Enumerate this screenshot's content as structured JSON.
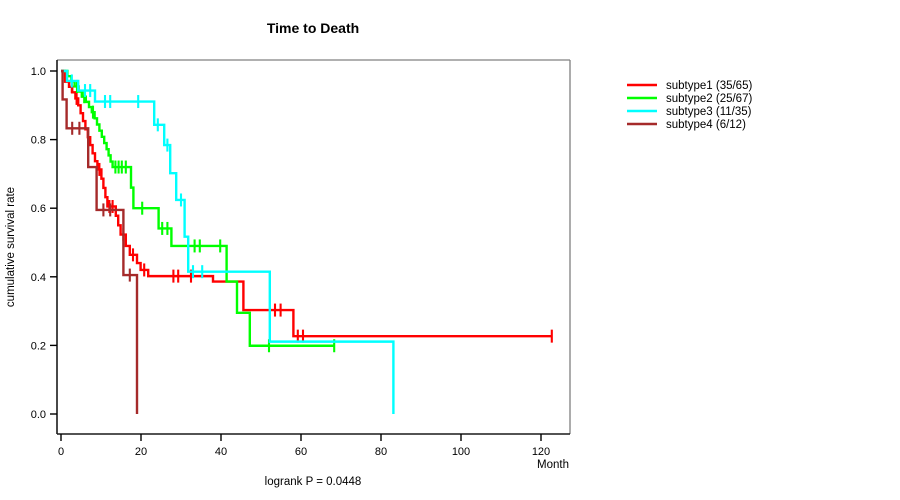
{
  "title": "Time to Death",
  "footnote": "logrank P = 0.0448",
  "axes": {
    "x": {
      "label": "Month",
      "ticks": [
        0,
        20,
        40,
        60,
        80,
        100,
        120
      ]
    },
    "y": {
      "label": "cumulative survival rate",
      "ticks": [
        "0.0",
        "0.2",
        "0.4",
        "0.6",
        "0.8",
        "1.0"
      ]
    }
  },
  "legend": [
    {
      "label": "subtype1 (35/65)",
      "color": "#FF0000"
    },
    {
      "label": "subtype2 (25/67)",
      "color": "#00FF00"
    },
    {
      "label": "subtype3 (11/35)",
      "color": "#00FFFF"
    },
    {
      "label": "subtype4 (6/12)",
      "color": "#A52A2A"
    }
  ],
  "chart_data": {
    "type": "line",
    "subtype": "kaplan-meier-step",
    "title": "Time to Death",
    "xlabel": "Month",
    "ylabel": "cumulative survival rate",
    "xlim": [
      0,
      127
    ],
    "ylim": [
      0,
      1.0
    ],
    "x_ticks": [
      0,
      20,
      40,
      60,
      80,
      100,
      120
    ],
    "y_ticks": [
      0.0,
      0.2,
      0.4,
      0.6,
      0.8,
      1.0
    ],
    "grid": false,
    "legend_position": "right-outside",
    "annotation": "logrank P = 0.0448",
    "series": [
      {
        "name": "subtype1 (35/65)",
        "color": "#FF0000",
        "steps": [
          [
            0,
            1.0
          ],
          [
            1,
            0.969
          ],
          [
            2,
            0.954
          ],
          [
            2.8,
            0.938
          ],
          [
            3.6,
            0.92
          ],
          [
            4.3,
            0.9
          ],
          [
            4.9,
            0.877
          ],
          [
            5.5,
            0.854
          ],
          [
            6.1,
            0.83
          ],
          [
            6.7,
            0.807
          ],
          [
            7.3,
            0.784
          ],
          [
            7.9,
            0.76
          ],
          [
            8.5,
            0.737
          ],
          [
            9.1,
            0.713
          ],
          [
            10.1,
            0.686
          ],
          [
            10.6,
            0.659
          ],
          [
            11.1,
            0.632
          ],
          [
            11.6,
            0.605
          ],
          [
            13.7,
            0.578
          ],
          [
            14.3,
            0.55
          ],
          [
            14.9,
            0.523
          ],
          [
            16.2,
            0.49
          ],
          [
            17.2,
            0.464
          ],
          [
            19,
            0.44
          ],
          [
            19.9,
            0.42
          ],
          [
            21.8,
            0.402
          ],
          [
            38,
            0.386
          ],
          [
            45.6,
            0.303
          ],
          [
            58.1,
            0.227
          ]
        ],
        "censors": [
          [
            2.7,
            0.954
          ],
          [
            3.9,
            0.92
          ],
          [
            9.6,
            0.713
          ],
          [
            12.1,
            0.605
          ],
          [
            12.9,
            0.605
          ],
          [
            15.6,
            0.523
          ],
          [
            18,
            0.464
          ],
          [
            20.8,
            0.42
          ],
          [
            28.1,
            0.402
          ],
          [
            29.3,
            0.402
          ],
          [
            32.5,
            0.402
          ],
          [
            53.5,
            0.303
          ],
          [
            54.9,
            0.303
          ],
          [
            59.2,
            0.227
          ],
          [
            60.5,
            0.227
          ]
        ],
        "end": {
          "month": 122.7,
          "censored": true
        }
      },
      {
        "name": "subtype2 (25/67)",
        "color": "#00FF00",
        "steps": [
          [
            0,
            1.0
          ],
          [
            1.6,
            0.985
          ],
          [
            2.6,
            0.97
          ],
          [
            3.4,
            0.955
          ],
          [
            4.4,
            0.94
          ],
          [
            5.2,
            0.925
          ],
          [
            6.2,
            0.91
          ],
          [
            7,
            0.895
          ],
          [
            7.7,
            0.88
          ],
          [
            8.4,
            0.862
          ],
          [
            9,
            0.844
          ],
          [
            9.6,
            0.826
          ],
          [
            10.2,
            0.808
          ],
          [
            10.8,
            0.79
          ],
          [
            11.4,
            0.772
          ],
          [
            11.9,
            0.754
          ],
          [
            12.4,
            0.736
          ],
          [
            12.9,
            0.72
          ],
          [
            17.5,
            0.66
          ],
          [
            18.1,
            0.6
          ],
          [
            24.4,
            0.541
          ],
          [
            27.6,
            0.49
          ],
          [
            41.4,
            0.386
          ],
          [
            44,
            0.295
          ],
          [
            47.2,
            0.199
          ]
        ],
        "censors": [
          [
            4,
            0.955
          ],
          [
            5.8,
            0.925
          ],
          [
            8,
            0.88
          ],
          [
            13.6,
            0.72
          ],
          [
            14.4,
            0.72
          ],
          [
            15.2,
            0.72
          ],
          [
            16.2,
            0.72
          ],
          [
            20.3,
            0.6
          ],
          [
            25.3,
            0.541
          ],
          [
            26.6,
            0.541
          ],
          [
            33.4,
            0.49
          ],
          [
            34.7,
            0.49
          ],
          [
            39.8,
            0.49
          ],
          [
            52,
            0.199
          ]
        ],
        "end": {
          "month": 68.3,
          "censored": true
        }
      },
      {
        "name": "subtype3 (11/35)",
        "color": "#00FFFF",
        "steps": [
          [
            0,
            1.0
          ],
          [
            1.5,
            0.971
          ],
          [
            4.3,
            0.943
          ],
          [
            8.5,
            0.911
          ],
          [
            23.3,
            0.843
          ],
          [
            25.8,
            0.784
          ],
          [
            27.3,
            0.702
          ],
          [
            28.8,
            0.624
          ],
          [
            30.9,
            0.517
          ],
          [
            31.8,
            0.415
          ],
          [
            52.2,
            0.211
          ],
          [
            83.1,
            0.0
          ]
        ],
        "censors": [
          [
            2.7,
            0.971
          ],
          [
            6,
            0.943
          ],
          [
            7.3,
            0.943
          ],
          [
            11,
            0.911
          ],
          [
            12.3,
            0.911
          ],
          [
            19.3,
            0.911
          ],
          [
            24.2,
            0.843
          ],
          [
            26.6,
            0.784
          ],
          [
            30,
            0.624
          ],
          [
            33,
            0.415
          ],
          [
            35.3,
            0.415
          ]
        ],
        "end": {
          "month": 83.1,
          "censored": false
        }
      },
      {
        "name": "subtype4 (6/12)",
        "color": "#A52A2A",
        "steps": [
          [
            0,
            1.0
          ],
          [
            0.4,
            0.917
          ],
          [
            1.4,
            0.833
          ],
          [
            6.8,
            0.72
          ],
          [
            8.9,
            0.595
          ],
          [
            15.6,
            0.405
          ],
          [
            19,
            0.0
          ]
        ],
        "censors": [
          [
            2.8,
            0.833
          ],
          [
            4.6,
            0.833
          ],
          [
            10.6,
            0.595
          ],
          [
            12.3,
            0.595
          ],
          [
            17.2,
            0.405
          ]
        ],
        "end": {
          "month": 19,
          "censored": false
        }
      }
    ]
  },
  "colors": {
    "box_light": "#808080",
    "box_dark": "#1a1a1a",
    "tick": "#000000"
  }
}
